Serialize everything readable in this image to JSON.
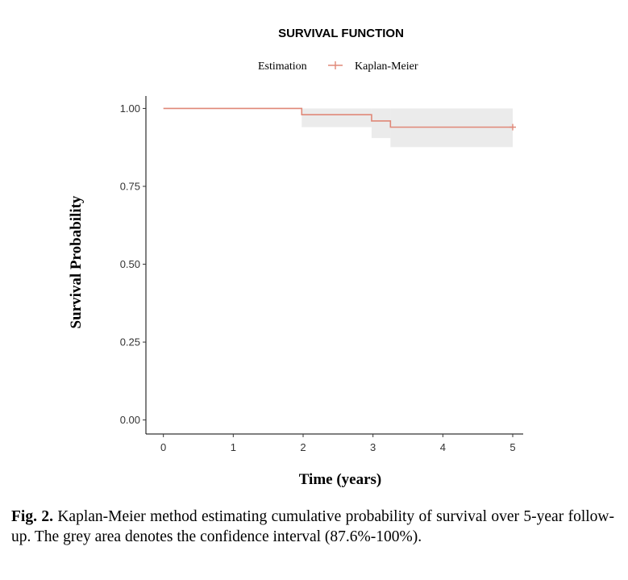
{
  "chart_data": {
    "type": "line",
    "title": "SURVIVAL FUNCTION",
    "legend": {
      "title": "Estimation",
      "entries": [
        "Kaplan-Meier"
      ],
      "position": "top"
    },
    "xlabel": "Time (years)",
    "ylabel": "Survival Probability",
    "xlim": [
      -0.25,
      5.15
    ],
    "ylim": [
      -0.045,
      1.04
    ],
    "x_ticks": [
      "0",
      "1",
      "2",
      "3",
      "4",
      "5"
    ],
    "y_ticks": [
      "0.00",
      "0.25",
      "0.50",
      "0.75",
      "1.00"
    ],
    "grid": false,
    "series": [
      {
        "name": "Kaplan-Meier",
        "color": "#E08878",
        "step_points": [
          {
            "x": 0,
            "y": 1.0
          },
          {
            "x": 1.98,
            "y": 0.98
          },
          {
            "x": 2.98,
            "y": 0.96
          },
          {
            "x": 3.25,
            "y": 0.94
          },
          {
            "x": 5.0,
            "y": 0.94
          }
        ],
        "censored": [
          {
            "x": 5.0,
            "y": 0.94
          }
        ],
        "confidence_band": [
          {
            "x0": 0,
            "x1": 1.98,
            "lower": 1.0,
            "upper": 1.0
          },
          {
            "x0": 1.98,
            "x1": 2.98,
            "lower": 0.94,
            "upper": 1.0
          },
          {
            "x0": 2.98,
            "x1": 3.25,
            "lower": 0.905,
            "upper": 1.0
          },
          {
            "x0": 3.25,
            "x1": 5.0,
            "lower": 0.876,
            "upper": 1.0
          }
        ],
        "band_color": "#EBEBEB"
      }
    ]
  },
  "caption": {
    "label": "Fig. 2.",
    "text": " Kaplan-Meier method estimating cumulative probability of survival over 5-year follow-up. The grey area denotes the confidence interval (87.6%-100%)."
  }
}
